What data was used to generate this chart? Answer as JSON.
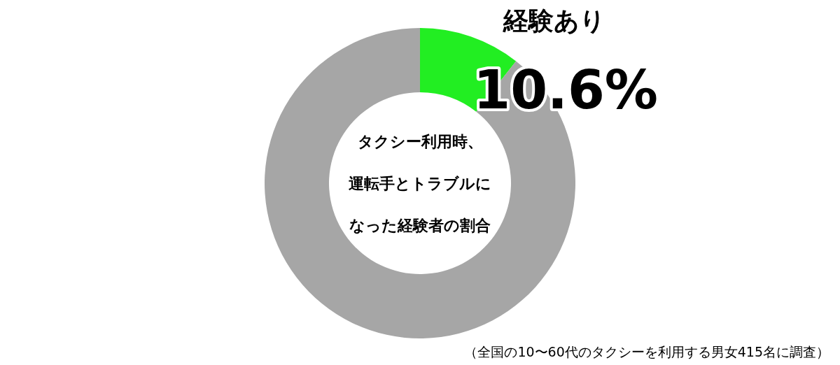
{
  "chart_data": {
    "type": "donut",
    "categories": [
      "経験あり",
      null
    ],
    "values": [
      10.6,
      89.4
    ],
    "colors": [
      "#22ee22",
      "#a6a6a6"
    ],
    "value_labels": [
      "10.6%",
      null
    ],
    "legend": false,
    "annotations": [
      "タクシー利用時、",
      "運転手とトラブルに",
      "なった経験者の割合",
      "（全国の10〜60代のタクシーを利用する男女415名に調査）"
    ]
  }
}
